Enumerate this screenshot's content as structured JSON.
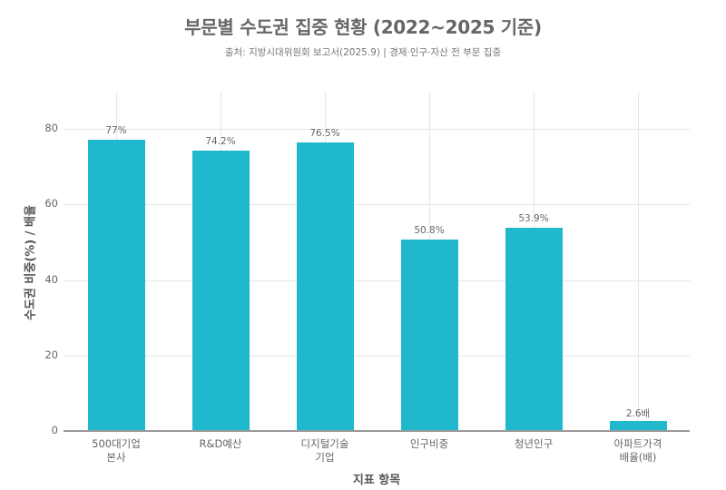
{
  "header": {
    "title": "부문별 수도권 집중 현황 (2022~2025 기준)",
    "subtitle": "출처: 지방시대위원회 보고서(2025.9) | 경제·인구·자산 전 부문 집중"
  },
  "axes": {
    "xlabel": "지표 항목",
    "ylabel": "수도권 비중(%) / 배율",
    "yticks": [
      "0",
      "20",
      "40",
      "60",
      "80"
    ]
  },
  "colors": {
    "bar": "#1fb8cd",
    "grid": "#e6e6e6",
    "text": "#666666"
  },
  "bars": [
    {
      "category": "500대기업\n본사",
      "value": 77,
      "label": "77%"
    },
    {
      "category": "R&D예산",
      "value": 74.2,
      "label": "74.2%"
    },
    {
      "category": "디지털기술\n기업",
      "value": 76.5,
      "label": "76.5%"
    },
    {
      "category": "인구비중",
      "value": 50.8,
      "label": "50.8%"
    },
    {
      "category": "청년인구",
      "value": 53.9,
      "label": "53.9%"
    },
    {
      "category": "아파트가격\n배율(배)",
      "value": 2.6,
      "label": "2.6배"
    }
  ],
  "chart_data": {
    "type": "bar",
    "title": "부문별 수도권 집중 현황 (2022~2025 기준)",
    "subtitle": "출처: 지방시대위원회 보고서(2025.9) | 경제·인구·자산 전 부문 집중",
    "categories": [
      "500대기업 본사",
      "R&D예산",
      "디지털기술 기업",
      "인구비중",
      "청년인구",
      "아파트가격 배율(배)"
    ],
    "values": [
      77,
      74.2,
      76.5,
      50.8,
      53.9,
      2.6
    ],
    "data_labels": [
      "77%",
      "74.2%",
      "76.5%",
      "50.8%",
      "53.9%",
      "2.6배"
    ],
    "xlabel": "지표 항목",
    "ylabel": "수도권 비중(%) / 배율",
    "ylim": [
      0,
      88
    ],
    "yticks": [
      0,
      20,
      40,
      60,
      80
    ],
    "grid": true,
    "legend": "none"
  }
}
